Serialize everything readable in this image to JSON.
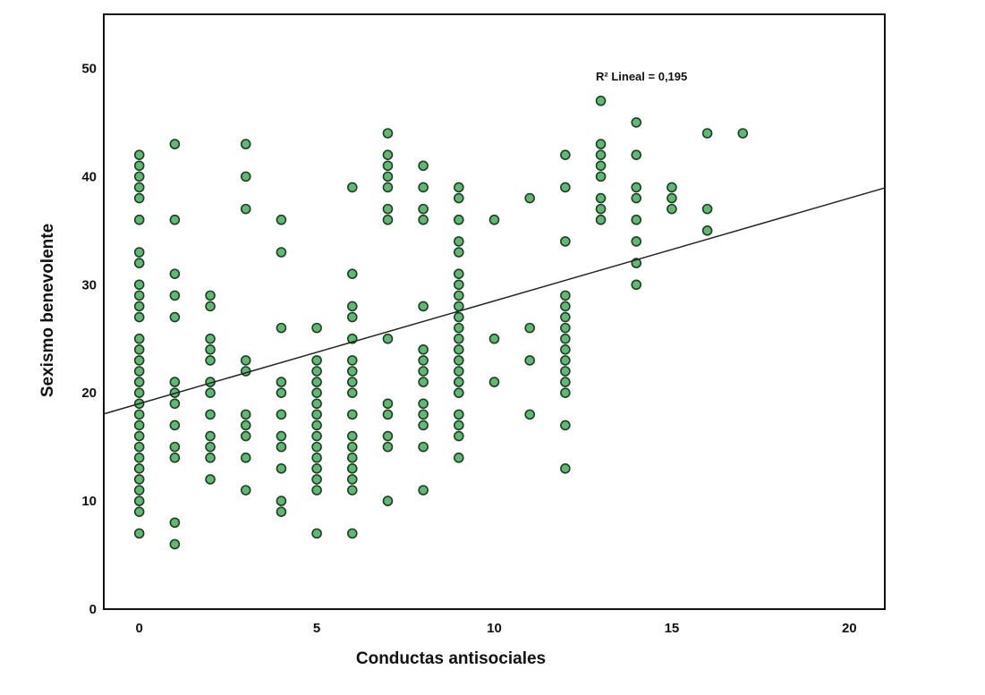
{
  "chart_data": {
    "type": "scatter",
    "title": "",
    "xlabel": "Conductas antisociales",
    "ylabel": "Sexismo benevolente",
    "xlim": [
      -1,
      21
    ],
    "ylim": [
      0,
      55
    ],
    "xticks": [
      0,
      5,
      10,
      15,
      20
    ],
    "yticks": [
      0,
      10,
      20,
      30,
      40,
      50
    ],
    "grid": false,
    "annotation": "R² Lineal = 0,195",
    "fit_line": {
      "intercept": 19.0,
      "slope": 0.95
    },
    "colors": {
      "point_fill": "#5fb873",
      "point_stroke": "#1f3d24",
      "line": "#222222"
    },
    "points": [
      [
        0,
        42
      ],
      [
        0,
        41
      ],
      [
        0,
        40
      ],
      [
        0,
        39
      ],
      [
        0,
        38
      ],
      [
        0,
        36
      ],
      [
        0,
        33
      ],
      [
        0,
        32
      ],
      [
        0,
        30
      ],
      [
        0,
        29
      ],
      [
        0,
        28
      ],
      [
        0,
        27
      ],
      [
        0,
        25
      ],
      [
        0,
        24
      ],
      [
        0,
        23
      ],
      [
        0,
        22
      ],
      [
        0,
        21
      ],
      [
        0,
        20
      ],
      [
        0,
        19
      ],
      [
        0,
        18
      ],
      [
        0,
        17
      ],
      [
        0,
        16
      ],
      [
        0,
        15
      ],
      [
        0,
        14
      ],
      [
        0,
        13
      ],
      [
        0,
        12
      ],
      [
        0,
        11
      ],
      [
        0,
        10
      ],
      [
        0,
        9
      ],
      [
        0,
        7
      ],
      [
        1,
        43
      ],
      [
        1,
        36
      ],
      [
        1,
        31
      ],
      [
        1,
        29
      ],
      [
        1,
        27
      ],
      [
        1,
        21
      ],
      [
        1,
        20
      ],
      [
        1,
        19
      ],
      [
        1,
        17
      ],
      [
        1,
        15
      ],
      [
        1,
        14
      ],
      [
        1,
        8
      ],
      [
        1,
        6
      ],
      [
        2,
        29
      ],
      [
        2,
        28
      ],
      [
        2,
        25
      ],
      [
        2,
        24
      ],
      [
        2,
        23
      ],
      [
        2,
        21
      ],
      [
        2,
        20
      ],
      [
        2,
        18
      ],
      [
        2,
        16
      ],
      [
        2,
        15
      ],
      [
        2,
        14
      ],
      [
        2,
        12
      ],
      [
        3,
        43
      ],
      [
        3,
        40
      ],
      [
        3,
        37
      ],
      [
        3,
        23
      ],
      [
        3,
        22
      ],
      [
        3,
        18
      ],
      [
        3,
        17
      ],
      [
        3,
        16
      ],
      [
        3,
        14
      ],
      [
        3,
        11
      ],
      [
        4,
        36
      ],
      [
        4,
        33
      ],
      [
        4,
        26
      ],
      [
        4,
        21
      ],
      [
        4,
        20
      ],
      [
        4,
        18
      ],
      [
        4,
        16
      ],
      [
        4,
        15
      ],
      [
        4,
        13
      ],
      [
        4,
        10
      ],
      [
        4,
        9
      ],
      [
        5,
        26
      ],
      [
        5,
        23
      ],
      [
        5,
        22
      ],
      [
        5,
        21
      ],
      [
        5,
        20
      ],
      [
        5,
        19
      ],
      [
        5,
        18
      ],
      [
        5,
        17
      ],
      [
        5,
        16
      ],
      [
        5,
        15
      ],
      [
        5,
        14
      ],
      [
        5,
        13
      ],
      [
        5,
        12
      ],
      [
        5,
        11
      ],
      [
        5,
        7
      ],
      [
        6,
        39
      ],
      [
        6,
        31
      ],
      [
        6,
        28
      ],
      [
        6,
        27
      ],
      [
        6,
        25
      ],
      [
        6,
        23
      ],
      [
        6,
        22
      ],
      [
        6,
        21
      ],
      [
        6,
        20
      ],
      [
        6,
        18
      ],
      [
        6,
        16
      ],
      [
        6,
        15
      ],
      [
        6,
        14
      ],
      [
        6,
        13
      ],
      [
        6,
        12
      ],
      [
        6,
        11
      ],
      [
        6,
        7
      ],
      [
        7,
        44
      ],
      [
        7,
        42
      ],
      [
        7,
        41
      ],
      [
        7,
        40
      ],
      [
        7,
        39
      ],
      [
        7,
        37
      ],
      [
        7,
        36
      ],
      [
        7,
        25
      ],
      [
        7,
        19
      ],
      [
        7,
        18
      ],
      [
        7,
        16
      ],
      [
        7,
        15
      ],
      [
        7,
        10
      ],
      [
        8,
        41
      ],
      [
        8,
        39
      ],
      [
        8,
        37
      ],
      [
        8,
        36
      ],
      [
        8,
        28
      ],
      [
        8,
        24
      ],
      [
        8,
        23
      ],
      [
        8,
        22
      ],
      [
        8,
        21
      ],
      [
        8,
        19
      ],
      [
        8,
        18
      ],
      [
        8,
        17
      ],
      [
        8,
        15
      ],
      [
        8,
        11
      ],
      [
        9,
        39
      ],
      [
        9,
        38
      ],
      [
        9,
        36
      ],
      [
        9,
        34
      ],
      [
        9,
        33
      ],
      [
        9,
        31
      ],
      [
        9,
        30
      ],
      [
        9,
        29
      ],
      [
        9,
        28
      ],
      [
        9,
        27
      ],
      [
        9,
        26
      ],
      [
        9,
        25
      ],
      [
        9,
        24
      ],
      [
        9,
        23
      ],
      [
        9,
        22
      ],
      [
        9,
        21
      ],
      [
        9,
        20
      ],
      [
        9,
        18
      ],
      [
        9,
        17
      ],
      [
        9,
        16
      ],
      [
        9,
        14
      ],
      [
        10,
        36
      ],
      [
        10,
        25
      ],
      [
        10,
        21
      ],
      [
        11,
        38
      ],
      [
        11,
        26
      ],
      [
        11,
        23
      ],
      [
        11,
        18
      ],
      [
        12,
        42
      ],
      [
        12,
        39
      ],
      [
        12,
        34
      ],
      [
        12,
        29
      ],
      [
        12,
        28
      ],
      [
        12,
        27
      ],
      [
        12,
        26
      ],
      [
        12,
        25
      ],
      [
        12,
        24
      ],
      [
        12,
        23
      ],
      [
        12,
        22
      ],
      [
        12,
        21
      ],
      [
        12,
        20
      ],
      [
        12,
        17
      ],
      [
        12,
        13
      ],
      [
        13,
        47
      ],
      [
        13,
        43
      ],
      [
        13,
        42
      ],
      [
        13,
        41
      ],
      [
        13,
        40
      ],
      [
        13,
        38
      ],
      [
        13,
        37
      ],
      [
        13,
        36
      ],
      [
        14,
        45
      ],
      [
        14,
        42
      ],
      [
        14,
        39
      ],
      [
        14,
        38
      ],
      [
        14,
        36
      ],
      [
        14,
        34
      ],
      [
        14,
        32
      ],
      [
        14,
        30
      ],
      [
        15,
        39
      ],
      [
        15,
        38
      ],
      [
        15,
        37
      ],
      [
        16,
        44
      ],
      [
        16,
        37
      ],
      [
        16,
        35
      ],
      [
        17,
        44
      ]
    ]
  }
}
